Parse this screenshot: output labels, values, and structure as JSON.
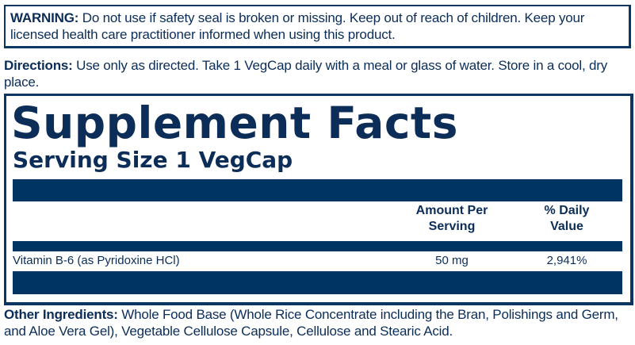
{
  "warning": {
    "label": "WARNING:",
    "text": "Do not use if safety seal is broken or missing. Keep out of reach of children. Keep your licensed health care practitioner informed when using this product."
  },
  "directions": {
    "label": "Directions:",
    "text": "Use only as directed. Take 1 VegCap daily with a meal or glass of water. Store in a cool, dry place."
  },
  "facts": {
    "title": "Supplement Facts",
    "serving_size": "Serving Size 1 VegCap",
    "headers": {
      "amount_line1": "Amount Per",
      "amount_line2": "Serving",
      "dv_line1": "% Daily",
      "dv_line2": "Value"
    },
    "rows": [
      {
        "name": "Vitamin B-6 (as Pyridoxine HCl)",
        "amount": "50 mg",
        "dv": "2,941%"
      }
    ]
  },
  "other_ingredients": {
    "label": "Other Ingredients:",
    "text": "Whole Food Base (Whole Rice Concentrate including the Bran, Polishings and Germ, and Aloe Vera Gel), Vegetable Cellulose Capsule, Cellulose and Stearic Acid."
  },
  "colors": {
    "navy": "#003462",
    "text": "#0b2d58"
  }
}
